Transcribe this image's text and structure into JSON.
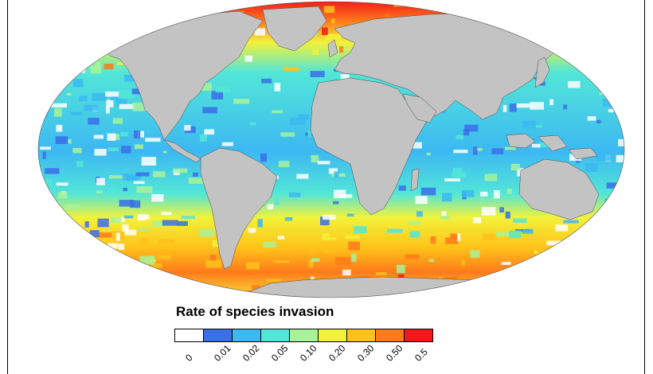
{
  "legend": {
    "title": "Rate of species invasion",
    "classes": [
      {
        "label": "0",
        "color": "#ffffff"
      },
      {
        "label": "0.01",
        "color": "#3a6fe8"
      },
      {
        "label": "0.02",
        "color": "#3cb8f2"
      },
      {
        "label": "0.05",
        "color": "#52e6d8"
      },
      {
        "label": "0.10",
        "color": "#a8f29a"
      },
      {
        "label": "0.20",
        "color": "#f2f23a"
      },
      {
        "label": "0.30",
        "color": "#ffc21a"
      },
      {
        "label": "0.50",
        "color": "#ff7a1a"
      },
      {
        "label": "0.5",
        "color": "#f2171a"
      }
    ]
  },
  "colors": {
    "land": "#c3c3c3",
    "land_border": "#4a4a4a",
    "ocean_base": "#52d8e0"
  }
}
